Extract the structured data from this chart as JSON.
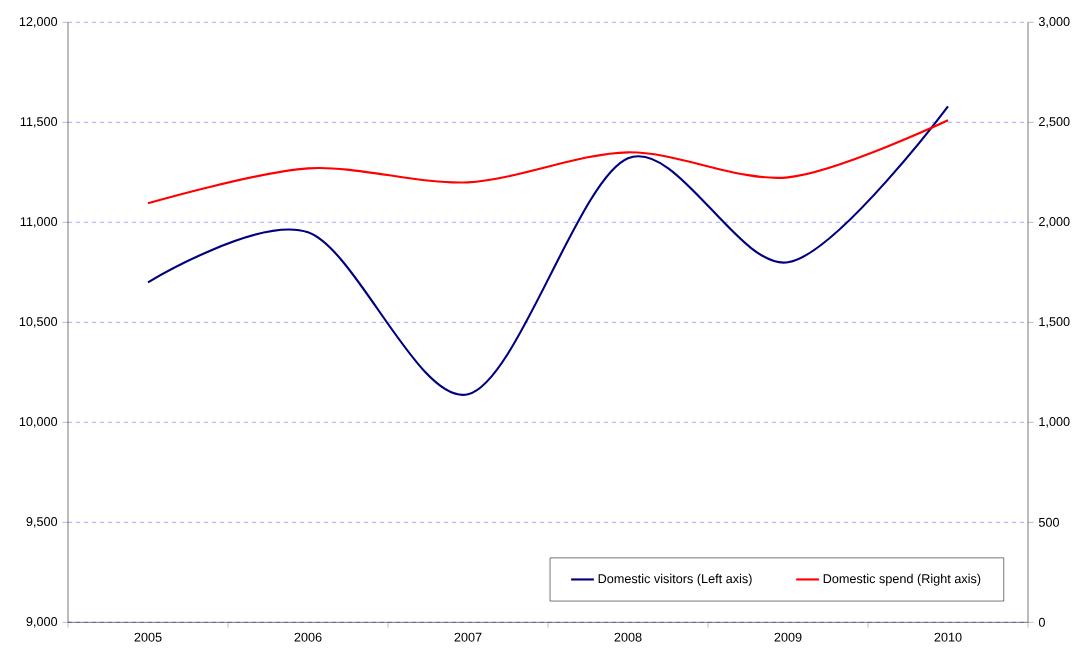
{
  "chart_data": {
    "type": "line",
    "categories": [
      "2005",
      "2006",
      "2007",
      "2008",
      "2009",
      "2010"
    ],
    "series": [
      {
        "name": "Domestic visitors (Left axis)",
        "color": "#000080",
        "values": [
          10700,
          10950,
          10140,
          11320,
          10800,
          11580
        ]
      },
      {
        "name": "Domestic spend (Right axis)",
        "color": "#ff0000",
        "axis": "y2",
        "values": [
          2095,
          2270,
          2200,
          2350,
          2225,
          2510
        ]
      }
    ],
    "ylim": [
      9000,
      12000
    ],
    "yticks": [
      {
        "value": 9000,
        "label": "9,000"
      },
      {
        "value": 9500,
        "label": "9,500"
      },
      {
        "value": 10000,
        "label": "10,000"
      },
      {
        "value": 10500,
        "label": "10,500"
      },
      {
        "value": 11000,
        "label": "11,000"
      },
      {
        "value": 11500,
        "label": "11,500"
      },
      {
        "value": 12000,
        "label": "12,000"
      }
    ],
    "y2lim": [
      0,
      3000
    ],
    "y2ticks": [
      0,
      500,
      {
        "value": 1000,
        "label": "1,000"
      },
      {
        "value": 1500,
        "label": "1,500"
      },
      {
        "value": 2000,
        "label": "2,000"
      },
      {
        "value": 2500,
        "label": "2,500"
      },
      {
        "value": 3000,
        "label": "3,000"
      }
    ],
    "grid": "y",
    "legend": "bottom right",
    "marker": "none",
    "line_style": "solid"
  }
}
